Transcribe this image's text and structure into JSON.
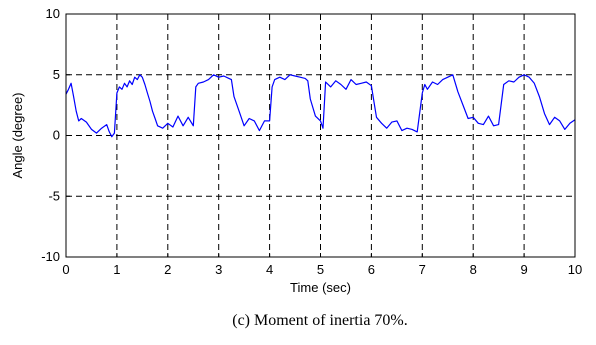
{
  "caption": "(c) Moment of inertia 70%.",
  "chart_data": {
    "type": "line",
    "title": "",
    "xlabel": "Time (sec)",
    "ylabel": "Angle (degree)",
    "xlim": [
      0,
      10
    ],
    "ylim": [
      -10,
      10
    ],
    "xticks": [
      "0",
      "1",
      "2",
      "3",
      "4",
      "5",
      "6",
      "7",
      "8",
      "9",
      "10"
    ],
    "yticks": [
      "-10",
      "-5",
      "0",
      "5",
      "10"
    ],
    "grid": true,
    "grid_style": "dashed",
    "series": [
      {
        "color": "#0000ff",
        "x": [
          0.0,
          0.05,
          0.1,
          0.15,
          0.2,
          0.25,
          0.3,
          0.4,
          0.5,
          0.6,
          0.7,
          0.8,
          0.85,
          0.9,
          0.95,
          1.0,
          1.05,
          1.1,
          1.15,
          1.2,
          1.25,
          1.3,
          1.35,
          1.4,
          1.45,
          1.5,
          1.55,
          1.6,
          1.65,
          1.7,
          1.75,
          1.8,
          1.9,
          2.0,
          2.1,
          2.2,
          2.3,
          2.4,
          2.5,
          2.55,
          2.6,
          2.7,
          2.8,
          2.9,
          3.0,
          3.1,
          3.2,
          3.25,
          3.3,
          3.4,
          3.5,
          3.6,
          3.7,
          3.8,
          3.9,
          4.0,
          4.05,
          4.1,
          4.2,
          4.3,
          4.4,
          4.5,
          4.6,
          4.7,
          4.75,
          4.8,
          4.9,
          5.0,
          5.05,
          5.1,
          5.2,
          5.3,
          5.4,
          5.5,
          5.6,
          5.7,
          5.8,
          5.9,
          6.0,
          6.05,
          6.1,
          6.2,
          6.3,
          6.4,
          6.5,
          6.6,
          6.7,
          6.8,
          6.9,
          7.0,
          7.05,
          7.1,
          7.2,
          7.3,
          7.4,
          7.5,
          7.6,
          7.7,
          7.8,
          7.9,
          8.0,
          8.1,
          8.2,
          8.3,
          8.4,
          8.5,
          8.6,
          8.7,
          8.8,
          8.9,
          9.0,
          9.1,
          9.2,
          9.3,
          9.4,
          9.5,
          9.6,
          9.7,
          9.8,
          9.9,
          10.0
        ],
        "y": [
          3.4,
          3.8,
          4.3,
          3.2,
          2.0,
          1.2,
          1.4,
          1.1,
          0.5,
          0.2,
          0.6,
          0.9,
          0.3,
          -0.1,
          0.2,
          3.5,
          4.0,
          3.8,
          4.3,
          4.0,
          4.5,
          4.2,
          4.8,
          4.6,
          5.0,
          4.8,
          4.2,
          3.5,
          2.8,
          2.0,
          1.4,
          0.8,
          0.6,
          1.0,
          0.7,
          1.6,
          0.8,
          1.5,
          0.8,
          4.0,
          4.3,
          4.4,
          4.6,
          5.0,
          4.8,
          4.9,
          4.7,
          4.6,
          3.2,
          2.0,
          0.8,
          1.4,
          1.2,
          0.4,
          1.2,
          1.2,
          4.0,
          4.6,
          4.8,
          4.6,
          5.0,
          4.9,
          4.8,
          4.7,
          4.5,
          3.0,
          1.6,
          1.2,
          0.6,
          4.4,
          4.0,
          4.5,
          4.2,
          3.8,
          4.6,
          4.2,
          4.3,
          4.4,
          4.1,
          2.8,
          1.5,
          1.0,
          0.6,
          1.1,
          1.2,
          0.4,
          0.6,
          0.5,
          0.3,
          3.5,
          4.2,
          3.8,
          4.4,
          4.2,
          4.6,
          4.8,
          5.0,
          3.6,
          2.5,
          1.4,
          1.5,
          1.0,
          0.9,
          1.6,
          0.8,
          0.9,
          4.2,
          4.5,
          4.4,
          4.8,
          5.0,
          4.8,
          4.3,
          3.2,
          1.8,
          0.9,
          1.5,
          1.2,
          0.5,
          1.0,
          1.3
        ]
      }
    ]
  }
}
